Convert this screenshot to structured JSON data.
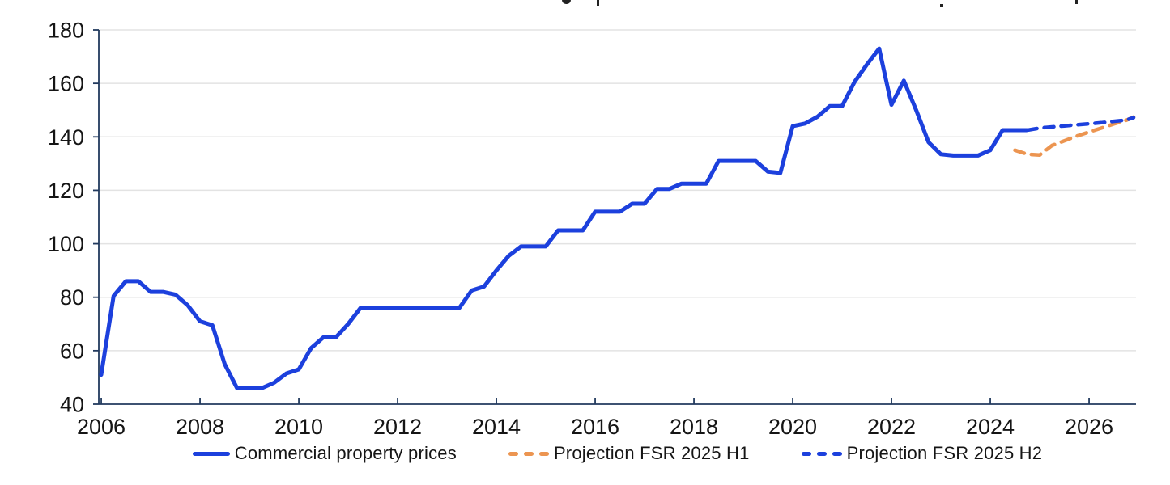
{
  "colors": {
    "actual": "#1c40dd",
    "projection_h1": "#ec9551",
    "projection_h2": "#1c40dd",
    "grid": "#e3e3e3",
    "axis": "#223a5e",
    "text": "#151515"
  },
  "legend": {
    "items": [
      {
        "label": "Commercial property prices",
        "style": "solid",
        "color_key": "actual"
      },
      {
        "label": "Projection FSR 2025 H1",
        "style": "dashed",
        "color_key": "projection_h1"
      },
      {
        "label": "Projection FSR 2025 H2",
        "style": "dashed",
        "color_key": "projection_h2"
      }
    ]
  },
  "chart_data": {
    "type": "line",
    "xlabel": "",
    "ylabel": "",
    "grid": "horizontal",
    "legend_position": "bottom",
    "x_range": [
      2005.95,
      2026.95
    ],
    "y_range": [
      40,
      180
    ],
    "x_ticks": [
      2006,
      2008,
      2010,
      2012,
      2014,
      2016,
      2018,
      2020,
      2022,
      2024,
      2026
    ],
    "y_ticks": [
      40,
      60,
      80,
      100,
      120,
      140,
      160,
      180
    ],
    "series": [
      {
        "name": "Commercial property prices",
        "style": "solid",
        "color_key": "actual",
        "x_start": 2006.0,
        "x_step": 0.25,
        "values": [
          51,
          80.5,
          86,
          86,
          82,
          82,
          81,
          77,
          71,
          69.5,
          55,
          46,
          46,
          46,
          48,
          51.5,
          53,
          61,
          65,
          65,
          70,
          76,
          76,
          76,
          76,
          76,
          76,
          76,
          76,
          76,
          82.5,
          84,
          90,
          95.5,
          99,
          99,
          99,
          105,
          105,
          105,
          112,
          112,
          112,
          115,
          115,
          120.5,
          120.5,
          122.5,
          122.5,
          122.5,
          131,
          131,
          131,
          131,
          127,
          126.5,
          144,
          145,
          147.5,
          151.5,
          151.5,
          160.5,
          167,
          173,
          152,
          161,
          150,
          138,
          133.5,
          133,
          133,
          133,
          135,
          142.5,
          142.5,
          142.5
        ]
      },
      {
        "name": "Projection FSR 2025 H1",
        "style": "dashed",
        "color_key": "projection_h1",
        "x": [
          2024.5,
          2024.75,
          2025.0,
          2025.25,
          2025.5,
          2025.75,
          2026.0,
          2026.25,
          2026.5,
          2026.75,
          2026.9
        ],
        "values": [
          135,
          133.5,
          133.2,
          136.8,
          138.5,
          140.3,
          141.8,
          143.3,
          144.8,
          146.2,
          147.4
        ]
      },
      {
        "name": "Projection FSR 2025 H2",
        "style": "dashed",
        "color_key": "projection_h2",
        "x": [
          2024.75,
          2025.0,
          2025.25,
          2025.5,
          2025.75,
          2026.0,
          2026.25,
          2026.5,
          2026.75,
          2026.9
        ],
        "values": [
          142.5,
          143.3,
          143.7,
          144.1,
          144.5,
          144.9,
          145.3,
          145.8,
          146.3,
          147.2
        ]
      }
    ]
  }
}
